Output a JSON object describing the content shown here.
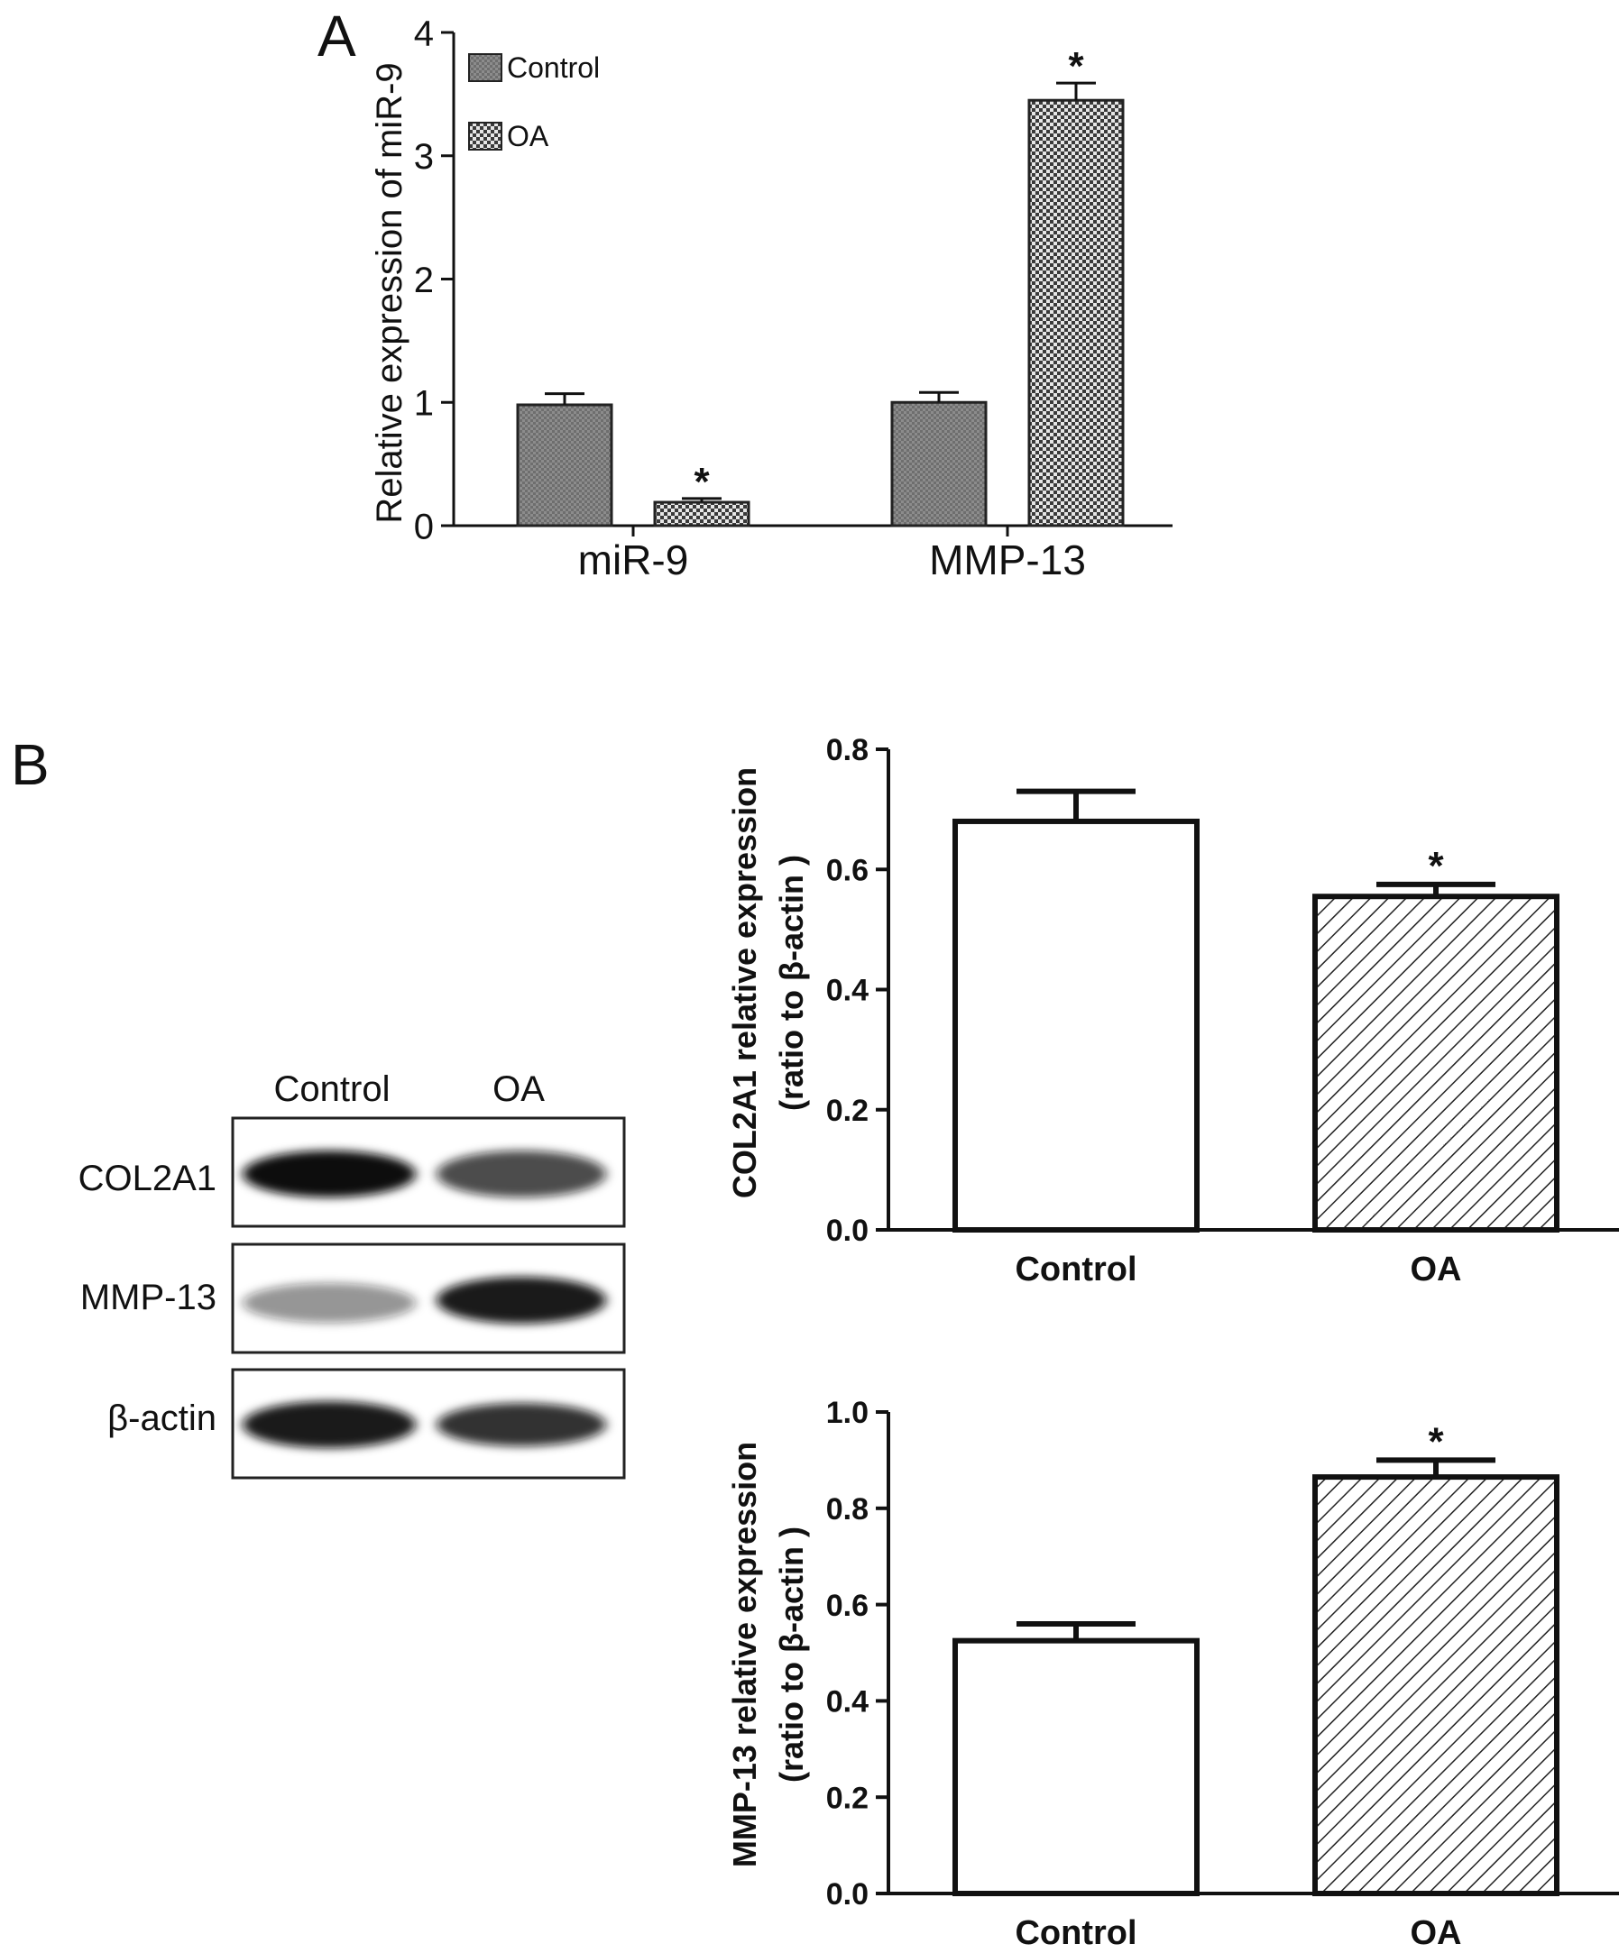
{
  "panels": {
    "A": {
      "letter": "A"
    },
    "B": {
      "letter": "B"
    }
  },
  "chart_data": [
    {
      "id": "A",
      "type": "bar",
      "title": "",
      "xlabel": "",
      "ylabel": "Relative expression of miR-9",
      "categories": [
        "miR-9",
        "MMP-13"
      ],
      "series": [
        {
          "name": "Control",
          "values": [
            0.98,
            1.0
          ],
          "errors": [
            0.09,
            0.08
          ],
          "significant": [
            false,
            false
          ]
        },
        {
          "name": "OA",
          "values": [
            0.19,
            3.45
          ],
          "errors": [
            0.03,
            0.14
          ],
          "significant": [
            true,
            true
          ]
        }
      ],
      "ylim": [
        0,
        4
      ],
      "yticks": [
        "0",
        "1",
        "2",
        "3",
        "4"
      ],
      "legend_position": "top-left",
      "grid": false,
      "fills": {
        "Control": "#7a7a7a",
        "OA": "#d0d0d0"
      }
    },
    {
      "id": "B-top",
      "type": "bar",
      "title": "",
      "xlabel": "",
      "ylabel_lines": [
        "COL2A1 relative expression",
        "(ratio to β-actin )"
      ],
      "categories": [
        "Control",
        "OA"
      ],
      "values": [
        0.68,
        0.555
      ],
      "errors": [
        0.05,
        0.02
      ],
      "significant": [
        false,
        true
      ],
      "ylim": [
        0,
        0.8
      ],
      "yticks": [
        "0.0",
        "0.2",
        "0.4",
        "0.6",
        "0.8"
      ],
      "fills": [
        "white",
        "hatch"
      ],
      "grid": false
    },
    {
      "id": "B-bottom",
      "type": "bar",
      "title": "",
      "xlabel": "",
      "ylabel_lines": [
        "MMP-13 relative expression",
        "(ratio to β-actin )"
      ],
      "categories": [
        "Control",
        "OA"
      ],
      "values": [
        0.525,
        0.865
      ],
      "errors": [
        0.035,
        0.035
      ],
      "significant": [
        false,
        true
      ],
      "ylim": [
        0,
        1.0
      ],
      "yticks": [
        "0.0",
        "0.2",
        "0.4",
        "0.6",
        "0.8",
        "1.0"
      ],
      "fills": [
        "white",
        "hatch"
      ],
      "grid": false
    }
  ],
  "significance_marker": "*",
  "blot": {
    "lanes": [
      "Control",
      "OA"
    ],
    "rows": [
      {
        "label": "COL2A1",
        "intensity": [
          1.0,
          0.75
        ]
      },
      {
        "label": "MMP-13",
        "intensity": [
          0.45,
          0.95
        ]
      },
      {
        "label": "β-actin",
        "intensity": [
          0.95,
          0.85
        ]
      }
    ]
  }
}
